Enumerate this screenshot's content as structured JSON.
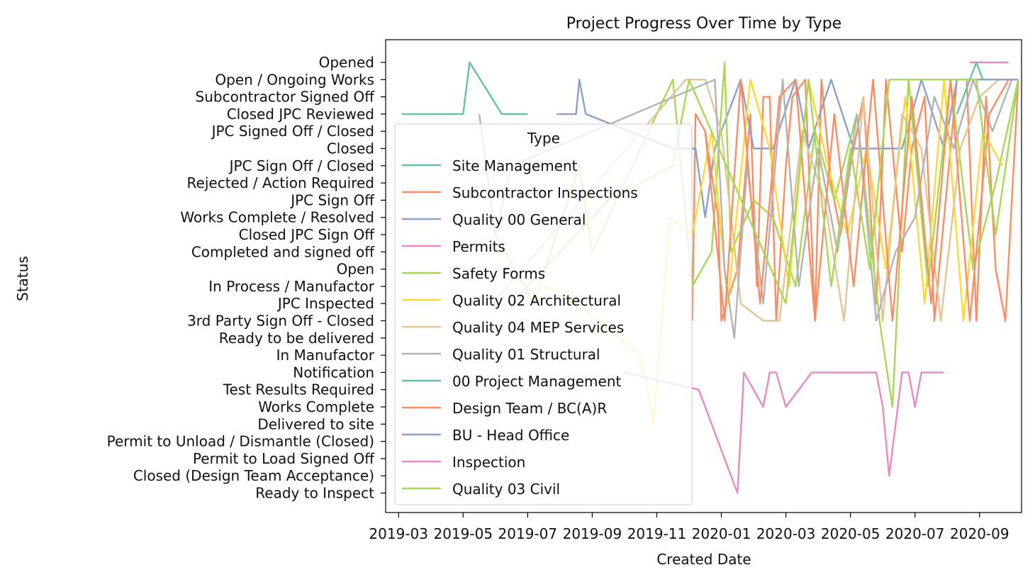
{
  "chart_data": {
    "type": "line",
    "title": "Project Progress Over Time by Type",
    "xlabel": "Created Date",
    "ylabel": "Status",
    "x_ticks": [
      "2019-03",
      "2019-05",
      "2019-07",
      "2019-09",
      "2019-11",
      "2020-01",
      "2020-03",
      "2020-05",
      "2020-07",
      "2020-09"
    ],
    "x_range_months": [
      -0.4,
      19.3
    ],
    "status_categories": [
      "Opened",
      "Open / Ongoing Works",
      "Subcontractor Signed Off",
      "Closed JPC Reviewed",
      "JPC Signed Off / Closed",
      "Closed",
      "JPC Sign Off / Closed",
      "Rejected / Action Required",
      "JPC Sign Off",
      "Works Complete / Resolved",
      "Closed JPC Sign Off",
      "Completed and signed off",
      "Open",
      "In Process / Manufactor",
      "JPC Inspected",
      "3rd Party Sign Off - Closed",
      "Ready to be delivered",
      "In Manufactor",
      "Notification",
      "Test Results Required",
      "Works Complete",
      "Delivered to site",
      "Permit to Unload / Dismantle (Closed)",
      "Permit to Load Signed Off",
      "Closed (Design Team Acceptance)",
      "Ready to Inspect"
    ],
    "legend": {
      "title": "Type",
      "placement": "center-left",
      "entries": [
        {
          "name": "Site Management",
          "color": "#66c2a5"
        },
        {
          "name": "Subcontractor Inspections",
          "color": "#fc8d62"
        },
        {
          "name": "Quality 00 General",
          "color": "#8da0cb"
        },
        {
          "name": "Permits",
          "color": "#e78ac3"
        },
        {
          "name": "Safety Forms",
          "color": "#a6d854"
        },
        {
          "name": "Quality 02 Architectural",
          "color": "#ffd92f"
        },
        {
          "name": "Quality 04 MEP Services",
          "color": "#e5c494"
        },
        {
          "name": "Quality 01 Structural",
          "color": "#b3b3b3"
        },
        {
          "name": "00 Project Management",
          "color": "#66c2a5"
        },
        {
          "name": "Design Team / BC(A)R",
          "color": "#fc8d62"
        },
        {
          "name": "BU - Head Office",
          "color": "#8da0cb"
        },
        {
          "name": "Inspection",
          "color": "#e78ac3"
        },
        {
          "name": "Quality 03 Civil",
          "color": "#a6d854"
        }
      ]
    },
    "series": [
      {
        "name": "Site Management",
        "x": [
          0.1,
          2.0,
          2.2,
          3.2,
          3.5,
          4.0
        ],
        "y": [
          3,
          3,
          0,
          3,
          3,
          3
        ]
      },
      {
        "name": "Subcontractor Inspections",
        "x": [
          9.1,
          9.2,
          9.5,
          9.9,
          10.0,
          10.5,
          10.9,
          11.1,
          11.3,
          11.5,
          11.7,
          12.0,
          12.2,
          12.6,
          12.9,
          13.1,
          13.4,
          13.7,
          14.0,
          14.4,
          14.8,
          15.1,
          15.6,
          15.9,
          16.3,
          16.6,
          17.0,
          17.3,
          17.6,
          17.9,
          18.2,
          18.5,
          18.8,
          19.2
        ],
        "y": [
          15,
          3,
          4,
          9,
          15,
          12,
          3,
          13,
          2,
          2,
          15,
          6,
          2,
          1,
          15,
          1,
          7,
          10,
          6,
          2,
          14,
          1,
          11,
          5,
          2,
          15,
          7,
          1,
          1,
          15,
          2,
          12,
          15,
          1
        ]
      },
      {
        "name": "Quality 00 General",
        "x": [
          4.9,
          5.5,
          5.6,
          5.8,
          8.5,
          9.2,
          9.5,
          9.8,
          10.6,
          11.0,
          11.6,
          12.3,
          12.7,
          13.4,
          14.1,
          14.8,
          15.6,
          16.2,
          16.9,
          17.3,
          17.9,
          18.6,
          19.2
        ],
        "y": [
          3,
          3,
          1,
          3,
          5,
          5,
          9,
          5,
          1,
          5,
          5,
          1,
          5,
          1,
          5,
          5,
          5,
          1,
          5,
          1,
          1,
          1,
          1
        ]
      },
      {
        "name": "Permits",
        "x": [
          17.7,
          18.0,
          18.2,
          18.4,
          18.6,
          18.9
        ],
        "y": [
          0,
          0,
          0,
          0,
          0,
          0
        ]
      },
      {
        "name": "Safety Forms",
        "x": [
          3.0,
          4.2,
          5.6,
          6.0,
          8.5,
          9.1,
          9.7,
          10.1,
          10.3,
          11.0,
          11.6,
          12.3,
          12.9,
          13.5,
          14.2,
          14.9,
          15.3,
          15.8,
          16.4,
          17.1,
          17.8,
          18.5,
          19.2
        ],
        "y": [
          10,
          14,
          6,
          11,
          1,
          13,
          11,
          0,
          11,
          8,
          9,
          13,
          4,
          8,
          3,
          15,
          20,
          1,
          13,
          1,
          12,
          7,
          1
        ]
      },
      {
        "name": "Quality 02 Architectural",
        "x": [
          4.5,
          5.5,
          7.5,
          7.9,
          8.4,
          9.1,
          9.7,
          10.2,
          10.9,
          11.5,
          12.1,
          12.7,
          13.3,
          13.9,
          14.5,
          15.1,
          15.7,
          16.3,
          16.9,
          17.5,
          18.1,
          18.7
        ],
        "y": [
          13,
          14,
          17,
          21,
          9,
          10,
          4,
          14,
          1,
          5,
          13,
          1,
          6,
          10,
          5,
          12,
          2,
          14,
          1,
          15,
          4,
          6
        ]
      },
      {
        "name": "Quality 04 MEP Services",
        "x": [
          2.9,
          8.9,
          9.5,
          10.0,
          10.6,
          11.3,
          11.8,
          12.5,
          13.2,
          13.8,
          14.4,
          15.0,
          15.6,
          16.2,
          16.8,
          17.4,
          18.0,
          18.6,
          19.2
        ],
        "y": [
          14,
          1,
          1,
          4,
          14,
          15,
          15,
          4,
          8,
          15,
          2,
          15,
          3,
          5,
          15,
          5,
          2,
          1,
          1
        ]
      },
      {
        "name": "Quality 01 Structural",
        "x": [
          2.5,
          3.0,
          3.5,
          9.8,
          10.1,
          10.4,
          10.8,
          11.3,
          11.9,
          12.4,
          13.0,
          13.6,
          14.2,
          14.8,
          15.4,
          16.0,
          16.6,
          17.2,
          17.8,
          18.4,
          19.0
        ],
        "y": [
          3,
          10,
          6,
          1,
          12,
          16,
          6,
          14,
          1,
          13,
          5,
          11,
          3,
          15,
          11,
          9,
          2,
          5,
          1,
          4,
          1
        ]
      },
      {
        "name": "00 Project Management",
        "x": [
          17.3,
          17.7,
          17.9,
          18.1
        ],
        "y": [
          3,
          1,
          0,
          1
        ]
      },
      {
        "name": "Design Team / BC(A)R",
        "x": [
          9.5,
          10.1,
          10.6,
          11.2,
          11.8,
          12.3,
          12.9,
          13.5,
          14.1,
          14.7,
          15.3,
          15.9,
          16.5,
          17.1,
          17.7,
          18.3,
          18.9
        ],
        "y": [
          4,
          15,
          1,
          14,
          2,
          1,
          15,
          3,
          13,
          1,
          15,
          2,
          14,
          1,
          15,
          3,
          1
        ]
      },
      {
        "name": "BU - Head Office",
        "x": [
          18.0,
          19.2
        ],
        "y": [
          1,
          1
        ]
      },
      {
        "name": "Inspection",
        "x": [
          7.0,
          9.3,
          10.5,
          10.7,
          11.3,
          11.5,
          11.7,
          12.0,
          12.8,
          14.8,
          15.0,
          15.2,
          15.6,
          15.8,
          16.0,
          16.2,
          16.9
        ],
        "y": [
          18,
          19,
          25,
          18,
          20,
          18,
          18,
          20,
          18,
          18,
          20,
          24,
          18,
          18,
          20,
          18,
          18
        ]
      },
      {
        "name": "Quality 03 Civil",
        "x": [
          3.5,
          6.5,
          8.5,
          9.0,
          12.0,
          12.7,
          13.4,
          14.0,
          14.6,
          15.2,
          15.9,
          16.5,
          17.2,
          17.9,
          18.5,
          19.2
        ],
        "y": [
          14,
          8,
          6,
          1,
          14,
          1,
          13,
          5,
          12,
          1,
          1,
          1,
          1,
          1,
          10,
          1
        ]
      }
    ]
  }
}
